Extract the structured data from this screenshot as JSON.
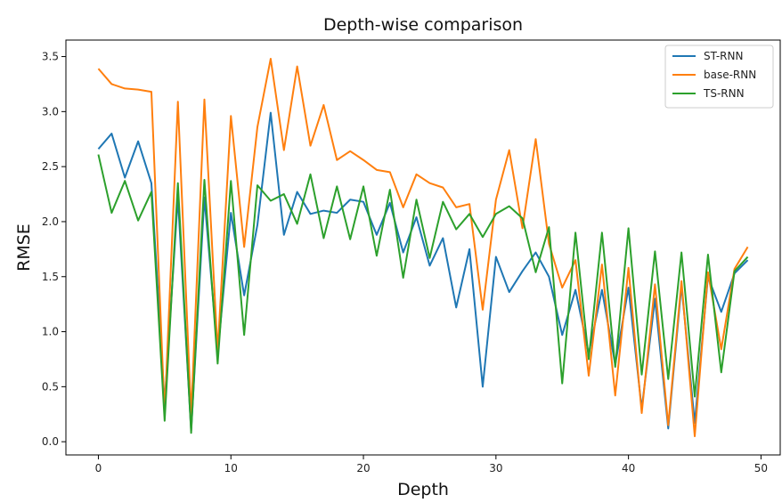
{
  "chart_data": {
    "type": "line",
    "title": "Depth-wise comparison",
    "xlabel": "Depth",
    "ylabel": "RMSE",
    "xlim": [
      -2.45,
      51.45
    ],
    "ylim": [
      -0.12,
      3.65
    ],
    "xticks": [
      0,
      10,
      20,
      30,
      40,
      50
    ],
    "xtick_labels": [
      "0",
      "10",
      "20",
      "30",
      "40",
      "50"
    ],
    "yticks": [
      0.0,
      0.5,
      1.0,
      1.5,
      2.0,
      2.5,
      3.0,
      3.5
    ],
    "ytick_labels": [
      "0.0",
      "0.5",
      "1.0",
      "1.5",
      "2.0",
      "2.5",
      "3.0",
      "3.5"
    ],
    "grid": false,
    "legend_position": "top-right",
    "x": [
      0,
      1,
      2,
      3,
      4,
      5,
      6,
      7,
      8,
      9,
      10,
      11,
      12,
      13,
      14,
      15,
      16,
      17,
      18,
      19,
      20,
      21,
      22,
      23,
      24,
      25,
      26,
      27,
      28,
      29,
      30,
      31,
      32,
      33,
      34,
      35,
      36,
      37,
      38,
      39,
      40,
      41,
      42,
      43,
      44,
      45,
      46,
      47,
      48,
      49
    ],
    "series": [
      {
        "name": "ST-RNN",
        "color": "#1f77b4",
        "values": [
          2.66,
          2.8,
          2.4,
          2.73,
          2.35,
          0.35,
          2.22,
          0.1,
          2.22,
          0.8,
          2.08,
          1.33,
          1.97,
          2.99,
          1.88,
          2.27,
          2.07,
          2.1,
          2.08,
          2.2,
          2.18,
          1.88,
          2.17,
          1.72,
          2.04,
          1.6,
          1.85,
          1.22,
          1.75,
          0.5,
          1.68,
          1.36,
          1.55,
          1.72,
          1.5,
          0.97,
          1.38,
          0.8,
          1.38,
          0.7,
          1.4,
          0.3,
          1.3,
          0.12,
          1.42,
          0.17,
          1.5,
          1.18,
          1.53,
          1.65
        ]
      },
      {
        "name": "base-RNN",
        "color": "#ff7f0e",
        "values": [
          3.39,
          3.25,
          3.21,
          3.2,
          3.18,
          0.25,
          3.09,
          0.24,
          3.11,
          0.82,
          2.96,
          1.77,
          2.86,
          3.48,
          2.65,
          3.41,
          2.69,
          3.06,
          2.56,
          2.64,
          2.56,
          2.47,
          2.45,
          2.13,
          2.43,
          2.35,
          2.31,
          2.13,
          2.16,
          1.2,
          2.2,
          2.65,
          1.94,
          2.75,
          1.8,
          1.4,
          1.65,
          0.6,
          1.61,
          0.42,
          1.58,
          0.26,
          1.43,
          0.15,
          1.46,
          0.05,
          1.54,
          0.84,
          1.57,
          1.77
        ]
      },
      {
        "name": "TS-RNN",
        "color": "#2ca02c",
        "values": [
          2.61,
          2.08,
          2.37,
          2.01,
          2.27,
          0.19,
          2.35,
          0.08,
          2.38,
          0.71,
          2.37,
          0.97,
          2.33,
          2.19,
          2.25,
          1.98,
          2.43,
          1.85,
          2.32,
          1.84,
          2.32,
          1.69,
          2.29,
          1.49,
          2.2,
          1.67,
          2.18,
          1.93,
          2.07,
          1.86,
          2.07,
          2.14,
          2.03,
          1.54,
          1.95,
          0.53,
          1.9,
          0.75,
          1.9,
          0.68,
          1.94,
          0.61,
          1.73,
          0.57,
          1.72,
          0.41,
          1.7,
          0.63,
          1.55,
          1.68
        ]
      }
    ]
  }
}
